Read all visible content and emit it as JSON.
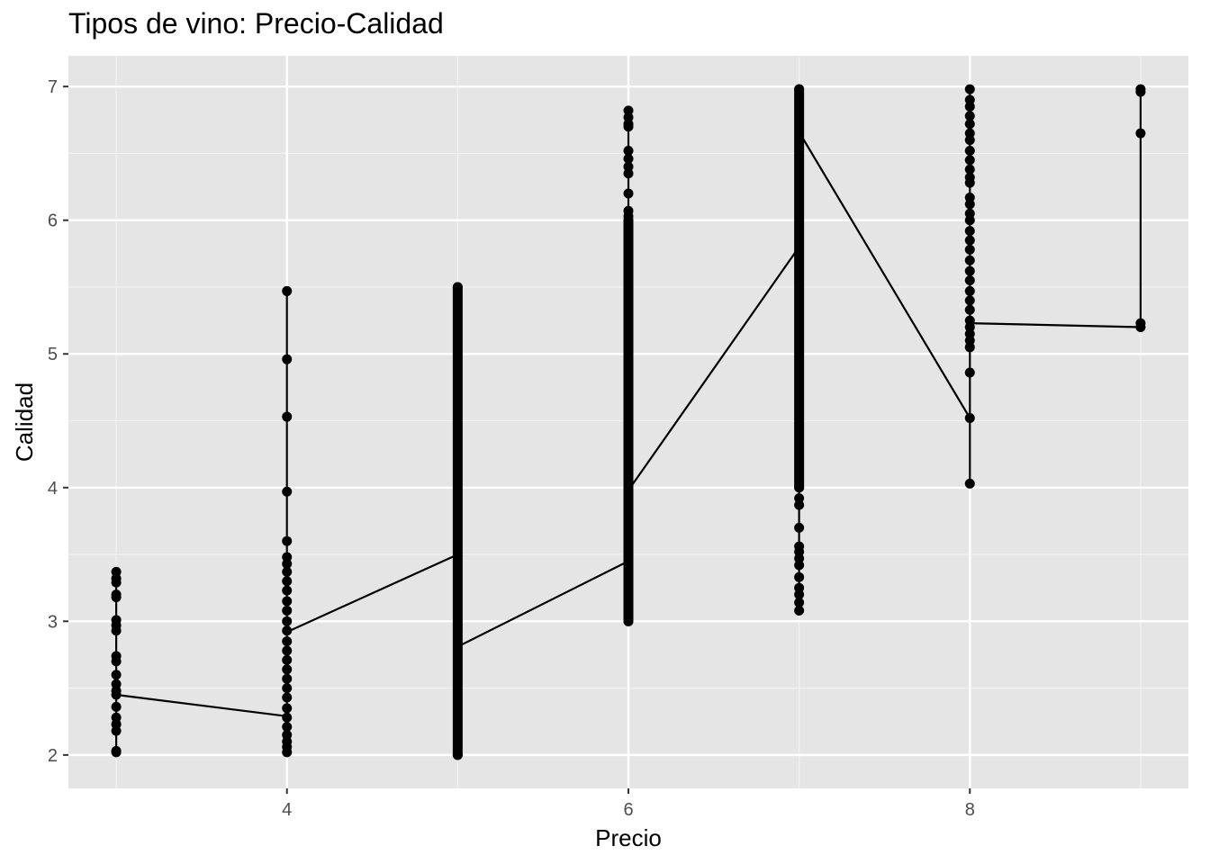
{
  "chart_data": {
    "type": "scatter",
    "title": "Tipos de vino: Precio-Calidad",
    "xlabel": "Precio",
    "ylabel": "Calidad",
    "xlim": [
      2.72,
      9.28
    ],
    "ylim": [
      1.75,
      7.23
    ],
    "x_ticks": [
      4,
      6,
      8
    ],
    "y_ticks": [
      2,
      3,
      4,
      5,
      6,
      7
    ],
    "grid": true,
    "legend": "none",
    "series": [
      {
        "kind": "points",
        "points": [
          [
            3,
            2.02
          ],
          [
            3,
            2.03
          ],
          [
            3,
            2.18
          ],
          [
            3,
            2.23
          ],
          [
            3,
            2.28
          ],
          [
            3,
            2.36
          ],
          [
            3,
            2.45
          ],
          [
            3,
            2.48
          ],
          [
            3,
            2.53
          ],
          [
            3,
            2.6
          ],
          [
            3,
            2.7
          ],
          [
            3,
            2.74
          ],
          [
            3,
            2.93
          ],
          [
            3,
            2.97
          ],
          [
            3,
            3.01
          ],
          [
            3,
            3.18
          ],
          [
            3,
            3.2
          ],
          [
            3,
            3.29
          ],
          [
            3,
            3.32
          ],
          [
            3,
            3.37
          ],
          [
            4,
            2.02
          ],
          [
            4,
            2.06
          ],
          [
            4,
            2.1
          ],
          [
            4,
            2.15
          ],
          [
            4,
            2.21
          ],
          [
            4,
            2.28
          ],
          [
            4,
            2.35
          ],
          [
            4,
            2.43
          ],
          [
            4,
            2.5
          ],
          [
            4,
            2.57
          ],
          [
            4,
            2.64
          ],
          [
            4,
            2.71
          ],
          [
            4,
            2.78
          ],
          [
            4,
            2.85
          ],
          [
            4,
            2.93
          ],
          [
            4,
            3.0
          ],
          [
            4,
            3.08
          ],
          [
            4,
            3.15
          ],
          [
            4,
            3.23
          ],
          [
            4,
            3.3
          ],
          [
            4,
            3.37
          ],
          [
            4,
            3.43
          ],
          [
            4,
            3.48
          ],
          [
            4,
            3.6
          ],
          [
            4,
            3.97
          ],
          [
            4,
            4.53
          ],
          [
            4,
            4.96
          ],
          [
            4,
            5.47
          ],
          [
            5,
            2.0
          ],
          [
            5,
            5.5
          ],
          [
            6,
            3.0
          ],
          [
            6,
            6.0
          ],
          [
            6,
            6.03
          ],
          [
            6,
            6.07
          ],
          [
            6,
            6.2
          ],
          [
            6,
            6.35
          ],
          [
            6,
            6.4
          ],
          [
            6,
            6.46
          ],
          [
            6,
            6.52
          ],
          [
            6,
            6.7
          ],
          [
            6,
            6.72
          ],
          [
            6,
            6.77
          ],
          [
            6,
            6.82
          ],
          [
            7,
            3.08
          ],
          [
            7,
            3.14
          ],
          [
            7,
            3.2
          ],
          [
            7,
            3.25
          ],
          [
            7,
            3.33
          ],
          [
            7,
            3.42
          ],
          [
            7,
            3.47
          ],
          [
            7,
            3.52
          ],
          [
            7,
            3.56
          ],
          [
            7,
            3.7
          ],
          [
            7,
            3.87
          ],
          [
            7,
            3.92
          ],
          [
            7,
            4.0
          ],
          [
            7,
            6.98
          ],
          [
            8,
            4.03
          ],
          [
            8,
            4.52
          ],
          [
            8,
            4.86
          ],
          [
            8,
            5.05
          ],
          [
            8,
            5.1
          ],
          [
            8,
            5.15
          ],
          [
            8,
            5.2
          ],
          [
            8,
            5.25
          ],
          [
            8,
            5.33
          ],
          [
            8,
            5.4
          ],
          [
            8,
            5.47
          ],
          [
            8,
            5.55
          ],
          [
            8,
            5.62
          ],
          [
            8,
            5.7
          ],
          [
            8,
            5.78
          ],
          [
            8,
            5.85
          ],
          [
            8,
            5.92
          ],
          [
            8,
            6.0
          ],
          [
            8,
            6.05
          ],
          [
            8,
            6.12
          ],
          [
            8,
            6.17
          ],
          [
            8,
            6.28
          ],
          [
            8,
            6.32
          ],
          [
            8,
            6.38
          ],
          [
            8,
            6.45
          ],
          [
            8,
            6.52
          ],
          [
            8,
            6.6
          ],
          [
            8,
            6.65
          ],
          [
            8,
            6.72
          ],
          [
            8,
            6.78
          ],
          [
            8,
            6.85
          ],
          [
            8,
            6.9
          ],
          [
            8,
            6.98
          ],
          [
            9,
            5.2
          ],
          [
            9,
            5.23
          ],
          [
            9,
            6.65
          ],
          [
            9,
            6.96
          ],
          [
            9,
            6.98
          ]
        ]
      },
      {
        "kind": "dense-columns",
        "columns": [
          {
            "x": 5,
            "ymin": 2.0,
            "ymax": 5.5
          },
          {
            "x": 6,
            "ymin": 3.0,
            "ymax": 6.0
          },
          {
            "x": 7,
            "ymin": 4.0,
            "ymax": 6.98
          }
        ]
      },
      {
        "kind": "line",
        "points": [
          [
            3,
            3.37
          ],
          [
            3,
            2.02
          ],
          [
            3,
            2.45
          ],
          [
            4,
            2.29
          ],
          [
            4,
            2.02
          ],
          [
            4,
            5.47
          ],
          [
            4,
            2.92
          ],
          [
            5,
            3.5
          ],
          [
            5,
            2.0
          ],
          [
            5,
            5.5
          ],
          [
            5,
            2.81
          ],
          [
            6,
            3.45
          ],
          [
            6,
            3.0
          ],
          [
            6,
            6.82
          ],
          [
            6,
            3.98
          ],
          [
            7,
            5.8
          ],
          [
            7,
            3.08
          ],
          [
            7,
            6.98
          ],
          [
            7,
            6.66
          ],
          [
            8,
            4.52
          ],
          [
            8,
            4.03
          ],
          [
            8,
            6.98
          ],
          [
            8,
            5.23
          ],
          [
            9,
            5.2
          ],
          [
            9,
            6.98
          ]
        ]
      }
    ]
  }
}
